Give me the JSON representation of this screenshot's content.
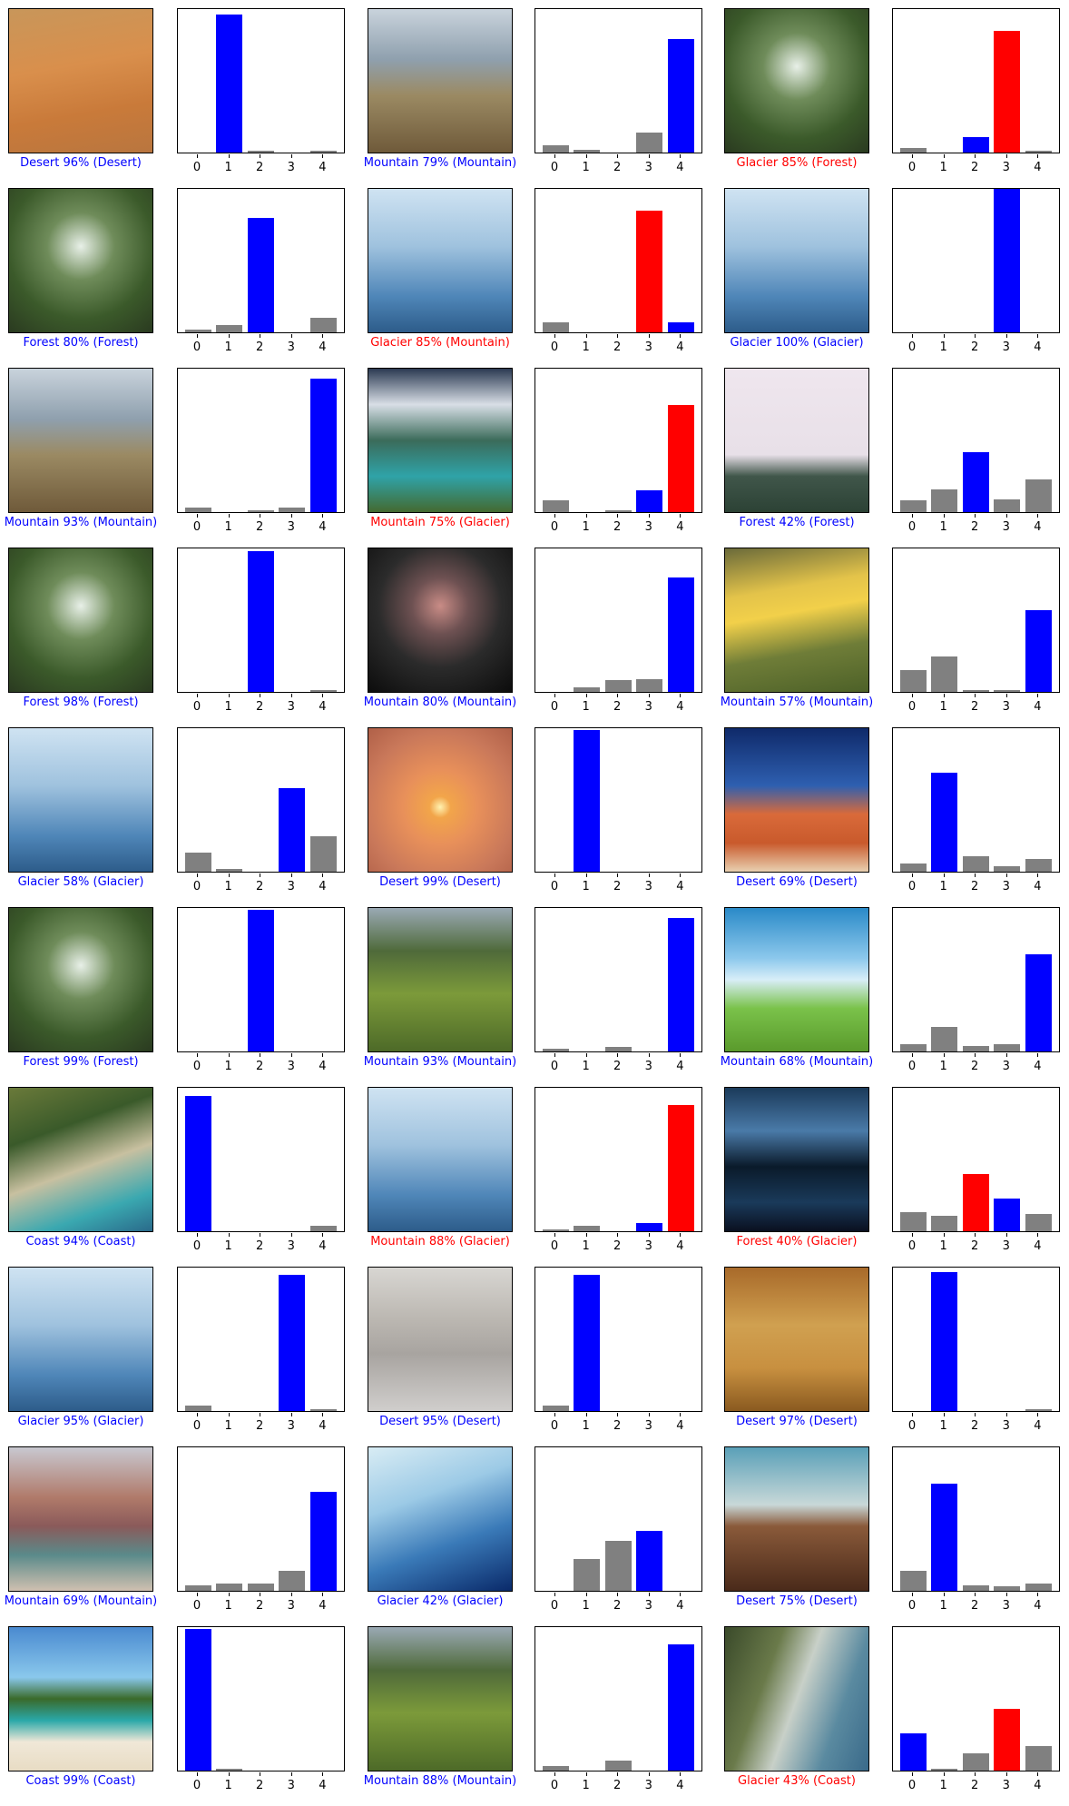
{
  "chart_data": {
    "type": "bar",
    "description_grid": "10 rows x 3 columns of (image, probability bar chart) pairs",
    "categories": [
      "0",
      "1",
      "2",
      "3",
      "4"
    ],
    "colors": {
      "correct": "#0000ff",
      "wrong": "#ff0000",
      "other": "#808080"
    },
    "panels": [
      {
        "caption": "Desert 96% (Desert)",
        "correct": true,
        "pred": 1,
        "true": 1,
        "values": [
          0.0,
          0.96,
          0.01,
          0.0,
          0.01
        ],
        "scene": "desert"
      },
      {
        "caption": "Mountain 79% (Mountain)",
        "correct": true,
        "pred": 4,
        "true": 4,
        "values": [
          0.05,
          0.02,
          0.0,
          0.14,
          0.79
        ],
        "scene": "mountain"
      },
      {
        "caption": "Glacier 85% (Forest)",
        "correct": false,
        "pred": 3,
        "true": 2,
        "values": [
          0.03,
          0.0,
          0.11,
          0.85,
          0.01
        ],
        "scene": "forest"
      },
      {
        "caption": "Forest 80% (Forest)",
        "correct": true,
        "pred": 2,
        "true": 2,
        "values": [
          0.02,
          0.05,
          0.8,
          0.0,
          0.1
        ],
        "scene": "forest"
      },
      {
        "caption": "Glacier 85% (Mountain)",
        "correct": false,
        "pred": 3,
        "true": 4,
        "values": [
          0.07,
          0.0,
          0.0,
          0.85,
          0.07
        ],
        "scene": "glacier"
      },
      {
        "caption": "Glacier 100% (Glacier)",
        "correct": true,
        "pred": 3,
        "true": 3,
        "values": [
          0.0,
          0.0,
          0.0,
          1.0,
          0.0
        ],
        "scene": "glacier"
      },
      {
        "caption": "Mountain 93% (Mountain)",
        "correct": true,
        "pred": 4,
        "true": 4,
        "values": [
          0.03,
          0.0,
          0.01,
          0.03,
          0.93
        ],
        "scene": "mountain"
      },
      {
        "caption": "Mountain 75% (Glacier)",
        "correct": false,
        "pred": 4,
        "true": 3,
        "values": [
          0.08,
          0.0,
          0.01,
          0.15,
          0.75
        ],
        "scene": "lake"
      },
      {
        "caption": "Forest 42% (Forest)",
        "correct": true,
        "pred": 2,
        "true": 2,
        "values": [
          0.08,
          0.16,
          0.42,
          0.09,
          0.23
        ],
        "scene": "fog"
      },
      {
        "caption": "Forest 98% (Forest)",
        "correct": true,
        "pred": 2,
        "true": 2,
        "values": [
          0.0,
          0.0,
          0.98,
          0.0,
          0.01
        ],
        "scene": "forest"
      },
      {
        "caption": "Mountain 80% (Mountain)",
        "correct": true,
        "pred": 4,
        "true": 4,
        "values": [
          0.0,
          0.03,
          0.08,
          0.09,
          0.8
        ],
        "scene": "darkmountain"
      },
      {
        "caption": "Mountain 57% (Mountain)",
        "correct": true,
        "pred": 4,
        "true": 4,
        "values": [
          0.15,
          0.25,
          0.01,
          0.01,
          0.57
        ],
        "scene": "sunset"
      },
      {
        "caption": "Glacier 58% (Glacier)",
        "correct": true,
        "pred": 3,
        "true": 3,
        "values": [
          0.13,
          0.02,
          0.0,
          0.58,
          0.25
        ],
        "scene": "glacier"
      },
      {
        "caption": "Desert 99% (Desert)",
        "correct": true,
        "pred": 1,
        "true": 1,
        "values": [
          0.0,
          0.99,
          0.0,
          0.0,
          0.0
        ],
        "scene": "dunesun"
      },
      {
        "caption": "Desert 69% (Desert)",
        "correct": true,
        "pred": 1,
        "true": 1,
        "values": [
          0.06,
          0.69,
          0.11,
          0.04,
          0.09
        ],
        "scene": "reddesert"
      },
      {
        "caption": "Forest 99% (Forest)",
        "correct": true,
        "pred": 2,
        "true": 2,
        "values": [
          0.0,
          0.0,
          0.99,
          0.0,
          0.0
        ],
        "scene": "forest"
      },
      {
        "caption": "Mountain 93% (Mountain)",
        "correct": true,
        "pred": 4,
        "true": 4,
        "values": [
          0.02,
          0.0,
          0.03,
          0.0,
          0.93
        ],
        "scene": "greenmountain"
      },
      {
        "caption": "Mountain 68% (Mountain)",
        "correct": true,
        "pred": 4,
        "true": 4,
        "values": [
          0.05,
          0.17,
          0.04,
          0.05,
          0.68
        ],
        "scene": "cartoon"
      },
      {
        "caption": "Coast 94% (Coast)",
        "correct": true,
        "pred": 0,
        "true": 0,
        "values": [
          0.94,
          0.0,
          0.0,
          0.0,
          0.04
        ],
        "scene": "coast"
      },
      {
        "caption": "Mountain 88% (Glacier)",
        "correct": false,
        "pred": 4,
        "true": 3,
        "values": [
          0.01,
          0.04,
          0.0,
          0.06,
          0.88
        ],
        "scene": "glacier"
      },
      {
        "caption": "Forest 40% (Glacier)",
        "correct": false,
        "pred": 2,
        "true": 3,
        "values": [
          0.13,
          0.11,
          0.4,
          0.23,
          0.12
        ],
        "scene": "darkwater"
      },
      {
        "caption": "Glacier 95% (Glacier)",
        "correct": true,
        "pred": 3,
        "true": 3,
        "values": [
          0.04,
          0.0,
          0.0,
          0.95,
          0.01
        ],
        "scene": "glacier"
      },
      {
        "caption": "Desert 95% (Desert)",
        "correct": true,
        "pred": 1,
        "true": 1,
        "values": [
          0.04,
          0.95,
          0.0,
          0.0,
          0.0
        ],
        "scene": "whitedesert"
      },
      {
        "caption": "Desert 97% (Desert)",
        "correct": true,
        "pred": 1,
        "true": 1,
        "values": [
          0.0,
          0.97,
          0.0,
          0.0,
          0.01
        ],
        "scene": "savanna"
      },
      {
        "caption": "Mountain 69% (Mountain)",
        "correct": true,
        "pred": 4,
        "true": 4,
        "values": [
          0.04,
          0.05,
          0.05,
          0.14,
          0.69
        ],
        "scene": "redmountain"
      },
      {
        "caption": "Glacier 42% (Glacier)",
        "correct": true,
        "pred": 3,
        "true": 3,
        "values": [
          0.0,
          0.22,
          0.35,
          0.42,
          0.0
        ],
        "scene": "ice"
      },
      {
        "caption": "Desert 75% (Desert)",
        "correct": true,
        "pred": 1,
        "true": 1,
        "values": [
          0.14,
          0.75,
          0.04,
          0.03,
          0.05
        ],
        "scene": "darkdesert"
      },
      {
        "caption": "Coast 99% (Coast)",
        "correct": true,
        "pred": 0,
        "true": 0,
        "values": [
          0.99,
          0.01,
          0.0,
          0.0,
          0.0
        ],
        "scene": "beach"
      },
      {
        "caption": "Mountain 88% (Mountain)",
        "correct": true,
        "pred": 4,
        "true": 4,
        "values": [
          0.03,
          0.0,
          0.07,
          0.0,
          0.88
        ],
        "scene": "greenmountain"
      },
      {
        "caption": "Glacier 43% (Coast)",
        "correct": false,
        "pred": 3,
        "true": 0,
        "values": [
          0.26,
          0.01,
          0.12,
          0.43,
          0.17
        ],
        "scene": "aerialcoast"
      }
    ]
  }
}
